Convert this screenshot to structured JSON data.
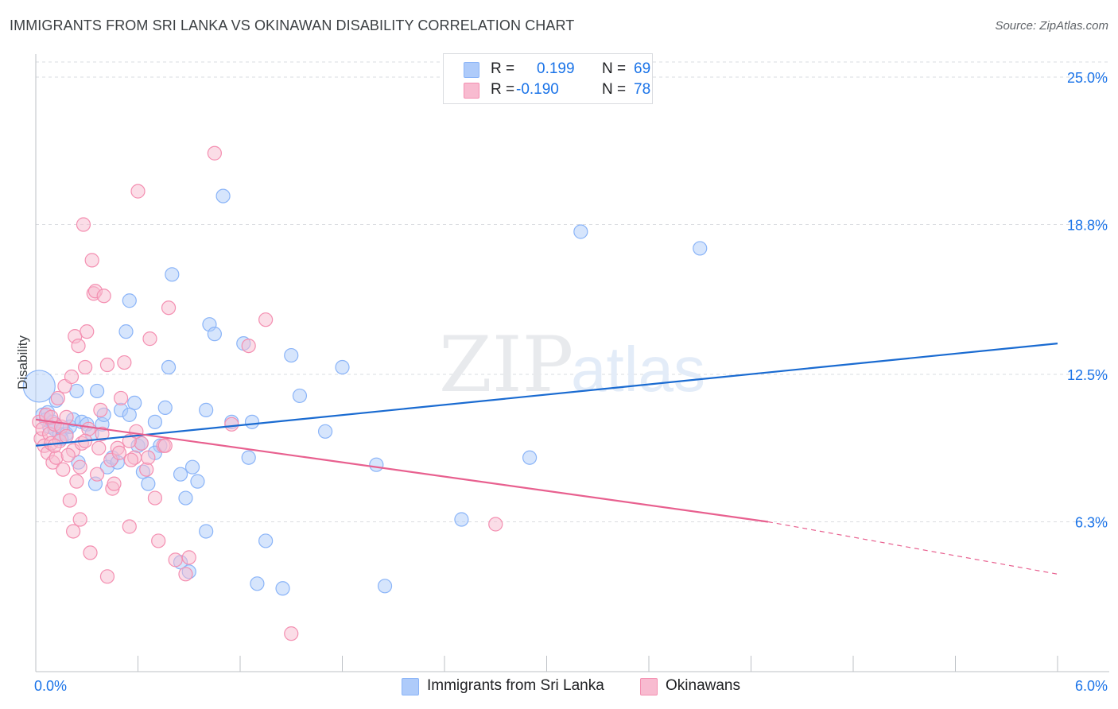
{
  "header": {
    "title": "IMMIGRANTS FROM SRI LANKA VS OKINAWAN DISABILITY CORRELATION CHART",
    "source": "Source: ZipAtlas.com"
  },
  "legend": {
    "rows": [
      {
        "r_label": "R =",
        "r_value": "0.199",
        "n_label": "N =",
        "n_value": "69"
      },
      {
        "r_label": "R =",
        "r_value": "-0.190",
        "n_label": "N =",
        "n_value": "78"
      }
    ]
  },
  "watermark": {
    "zip": "ZIP",
    "atlas": "atlas"
  },
  "colors": {
    "blue_fill": "#aecbfa",
    "blue_stroke": "#8ab4f8",
    "blue_line": "#1a6bd1",
    "pink_fill": "#f8bbd0",
    "pink_stroke": "#f48fb1",
    "pink_line": "#e8608f",
    "axis_label": "#1a73e8",
    "grid": "#dadce0"
  },
  "chart_data": {
    "type": "scatter",
    "title": "IMMIGRANTS FROM SRI LANKA VS OKINAWAN DISABILITY CORRELATION CHART",
    "xlabel": "",
    "ylabel": "Disability",
    "xlim": [
      0.0,
      6.0
    ],
    "ylim": [
      0.0,
      25.0
    ],
    "x_tick_labels": [
      "0.0%",
      "6.0%"
    ],
    "y_ticks": [
      6.3,
      12.5,
      18.8,
      25.0
    ],
    "y_tick_labels": [
      "6.3%",
      "12.5%",
      "18.8%",
      "25.0%"
    ],
    "grid": true,
    "legend_position": "bottom",
    "series": [
      {
        "name": "Immigrants from Sri Lanka",
        "color": "#aecbfa",
        "trend": {
          "x": [
            0.0,
            6.0
          ],
          "y": [
            9.5,
            13.8
          ]
        },
        "points": [
          [
            0.02,
            12.0
          ],
          [
            0.04,
            10.8
          ],
          [
            0.06,
            10.6
          ],
          [
            0.07,
            10.9
          ],
          [
            0.08,
            10.3
          ],
          [
            0.1,
            10.5
          ],
          [
            0.11,
            10.2
          ],
          [
            0.12,
            11.4
          ],
          [
            0.14,
            10.0
          ],
          [
            0.16,
            10.2
          ],
          [
            0.18,
            10.0
          ],
          [
            0.2,
            10.3
          ],
          [
            0.22,
            10.6
          ],
          [
            0.24,
            11.8
          ],
          [
            0.27,
            10.5
          ],
          [
            0.3,
            10.4
          ],
          [
            0.33,
            10.0
          ],
          [
            0.36,
            11.8
          ],
          [
            0.39,
            10.4
          ],
          [
            0.42,
            8.6
          ],
          [
            0.45,
            9.0
          ],
          [
            0.48,
            8.8
          ],
          [
            0.5,
            11.0
          ],
          [
            0.53,
            14.3
          ],
          [
            0.55,
            15.6
          ],
          [
            0.58,
            11.3
          ],
          [
            0.6,
            9.5
          ],
          [
            0.63,
            8.4
          ],
          [
            0.66,
            7.9
          ],
          [
            0.7,
            10.5
          ],
          [
            0.73,
            9.5
          ],
          [
            0.76,
            11.1
          ],
          [
            0.78,
            12.8
          ],
          [
            0.8,
            16.7
          ],
          [
            0.85,
            8.3
          ],
          [
            0.88,
            7.3
          ],
          [
            0.92,
            8.6
          ],
          [
            0.95,
            8.0
          ],
          [
            1.0,
            11.0
          ],
          [
            1.02,
            14.6
          ],
          [
            1.05,
            14.2
          ],
          [
            1.1,
            20.0
          ],
          [
            1.15,
            10.5
          ],
          [
            1.22,
            13.8
          ],
          [
            1.25,
            9.0
          ],
          [
            1.27,
            10.5
          ],
          [
            1.5,
            13.3
          ],
          [
            1.55,
            11.6
          ],
          [
            1.7,
            10.1
          ],
          [
            1.8,
            12.8
          ],
          [
            2.0,
            8.7
          ],
          [
            2.5,
            6.4
          ],
          [
            2.9,
            9.0
          ],
          [
            3.2,
            18.5
          ],
          [
            3.9,
            17.8
          ],
          [
            0.15,
            9.8
          ],
          [
            0.25,
            8.8
          ],
          [
            0.35,
            7.9
          ],
          [
            0.4,
            10.8
          ],
          [
            0.55,
            10.8
          ],
          [
            0.62,
            9.6
          ],
          [
            0.7,
            9.2
          ],
          [
            0.85,
            4.6
          ],
          [
            0.9,
            4.2
          ],
          [
            1.0,
            5.9
          ],
          [
            1.3,
            3.7
          ],
          [
            1.45,
            3.5
          ],
          [
            2.05,
            3.6
          ],
          [
            1.35,
            5.5
          ]
        ]
      },
      {
        "name": "Okinawans",
        "color": "#f8bbd0",
        "trend": {
          "x": [
            0.0,
            4.3
          ],
          "y": [
            10.6,
            6.3
          ],
          "dashed_to": {
            "x": 6.0,
            "y": 4.1
          }
        },
        "points": [
          [
            0.02,
            10.5
          ],
          [
            0.03,
            9.8
          ],
          [
            0.04,
            10.2
          ],
          [
            0.05,
            9.5
          ],
          [
            0.06,
            10.8
          ],
          [
            0.07,
            9.2
          ],
          [
            0.08,
            10.0
          ],
          [
            0.09,
            9.6
          ],
          [
            0.1,
            8.8
          ],
          [
            0.11,
            10.4
          ],
          [
            0.12,
            9.0
          ],
          [
            0.13,
            11.5
          ],
          [
            0.14,
            9.7
          ],
          [
            0.15,
            10.3
          ],
          [
            0.16,
            8.5
          ],
          [
            0.17,
            12.0
          ],
          [
            0.18,
            9.9
          ],
          [
            0.2,
            7.2
          ],
          [
            0.21,
            12.4
          ],
          [
            0.22,
            9.3
          ],
          [
            0.23,
            14.1
          ],
          [
            0.24,
            8.0
          ],
          [
            0.25,
            13.7
          ],
          [
            0.27,
            9.6
          ],
          [
            0.28,
            18.8
          ],
          [
            0.29,
            12.8
          ],
          [
            0.3,
            14.3
          ],
          [
            0.31,
            10.2
          ],
          [
            0.33,
            17.3
          ],
          [
            0.34,
            15.9
          ],
          [
            0.35,
            16.0
          ],
          [
            0.37,
            9.4
          ],
          [
            0.38,
            11.0
          ],
          [
            0.4,
            15.8
          ],
          [
            0.42,
            12.9
          ],
          [
            0.44,
            8.9
          ],
          [
            0.45,
            7.7
          ],
          [
            0.48,
            9.4
          ],
          [
            0.5,
            11.5
          ],
          [
            0.52,
            13.0
          ],
          [
            0.55,
            6.1
          ],
          [
            0.58,
            9.0
          ],
          [
            0.6,
            20.2
          ],
          [
            0.62,
            9.6
          ],
          [
            0.65,
            8.5
          ],
          [
            0.67,
            14.0
          ],
          [
            0.7,
            7.3
          ],
          [
            0.72,
            5.5
          ],
          [
            0.75,
            9.5
          ],
          [
            0.78,
            15.3
          ],
          [
            0.82,
            4.7
          ],
          [
            0.88,
            4.1
          ],
          [
            0.9,
            4.8
          ],
          [
            1.05,
            21.8
          ],
          [
            1.15,
            10.4
          ],
          [
            1.25,
            13.7
          ],
          [
            1.35,
            14.8
          ],
          [
            1.5,
            1.6
          ],
          [
            2.7,
            6.2
          ],
          [
            0.26,
            6.4
          ],
          [
            0.22,
            5.9
          ],
          [
            0.32,
            5.0
          ],
          [
            0.42,
            4.0
          ],
          [
            0.55,
            9.7
          ],
          [
            0.18,
            10.7
          ],
          [
            0.19,
            9.1
          ],
          [
            0.26,
            8.6
          ],
          [
            0.36,
            8.3
          ],
          [
            0.46,
            7.9
          ],
          [
            0.56,
            8.9
          ],
          [
            0.66,
            9.0
          ],
          [
            0.76,
            9.5
          ],
          [
            0.09,
            10.7
          ],
          [
            0.11,
            9.5
          ],
          [
            0.29,
            9.7
          ],
          [
            0.39,
            10.0
          ],
          [
            0.49,
            9.2
          ],
          [
            0.59,
            10.1
          ]
        ]
      }
    ]
  },
  "bottom_legend": [
    {
      "label": "Immigrants from Sri Lanka"
    },
    {
      "label": "Okinawans"
    }
  ]
}
